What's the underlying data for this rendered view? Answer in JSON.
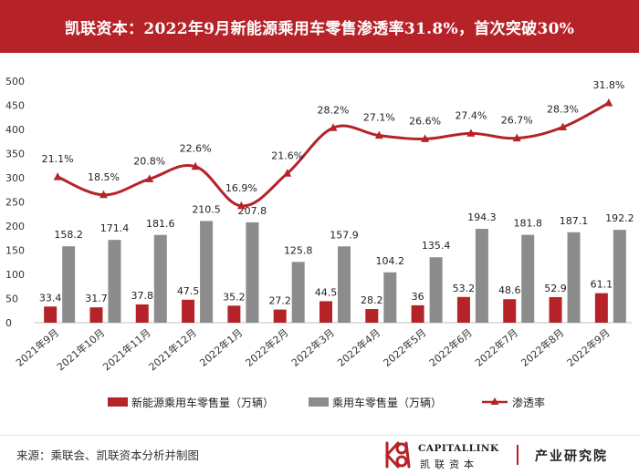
{
  "header": {
    "title": "凯联资本：2022年9月新能源乘用车零售渗透率31.8%，首次突破30%"
  },
  "footer": {
    "source": "来源：乘联会、凯联资本分析并制图",
    "brand_en": "CAPITALLINK",
    "brand_cn": "凯联资本",
    "dept": "产业研究院"
  },
  "colors": {
    "accent": "#b52329",
    "nev_bar": "#b52329",
    "total_bar": "#8c8c8c",
    "rate_line": "#b52329"
  },
  "chart_data": {
    "type": "bar",
    "categories": [
      "2021年9月",
      "2021年10月",
      "2021年11月",
      "2021年12月",
      "2022年1月",
      "2022年2月",
      "2022年3月",
      "2022年4月",
      "2022年5月",
      "2022年6月",
      "2022年7月",
      "2022年8月",
      "2022年9月"
    ],
    "series": [
      {
        "name": "新能源乘用车零售量（万辆）",
        "type": "bar",
        "values": [
          33.4,
          31.7,
          37.8,
          47.5,
          35.2,
          27.2,
          44.5,
          28.2,
          36,
          53.2,
          48.6,
          52.9,
          61.1
        ],
        "labels": [
          "33.4",
          "31.7",
          "37.8",
          "47.5",
          "35.2",
          "27.2",
          "44.5",
          "28.2",
          "36",
          "53.2",
          "48.6",
          "52.9",
          "61.1"
        ]
      },
      {
        "name": "乘用车零售量（万辆）",
        "type": "bar",
        "values": [
          158.2,
          171.4,
          181.6,
          210.5,
          207.8,
          125.8,
          157.9,
          104.2,
          135.4,
          194.3,
          181.8,
          187.1,
          192.2
        ],
        "labels": [
          "158.2",
          "171.4",
          "181.6",
          "210.5",
          "207.8",
          "125.8",
          "157.9",
          "104.2",
          "135.4",
          "194.3",
          "181.8",
          "187.1",
          "192.2"
        ]
      },
      {
        "name": "渗透率",
        "type": "line",
        "values": [
          21.1,
          18.5,
          20.8,
          22.6,
          16.9,
          21.6,
          28.2,
          27.1,
          26.6,
          27.4,
          26.7,
          28.3,
          31.8
        ],
        "labels": [
          "21.1%",
          "18.5%",
          "20.8%",
          "22.6%",
          "16.9%",
          "21.6%",
          "28.2%",
          "27.1%",
          "26.6%",
          "27.4%",
          "26.7%",
          "28.3%",
          "31.8%"
        ]
      }
    ],
    "y_ticks": [
      "0",
      "50",
      "100",
      "150",
      "200",
      "250",
      "300",
      "350",
      "400",
      "450",
      "500"
    ],
    "ylim": [
      0,
      500
    ],
    "grid": false,
    "legend_position": "bottom",
    "xlabel": "",
    "ylabel": ""
  }
}
